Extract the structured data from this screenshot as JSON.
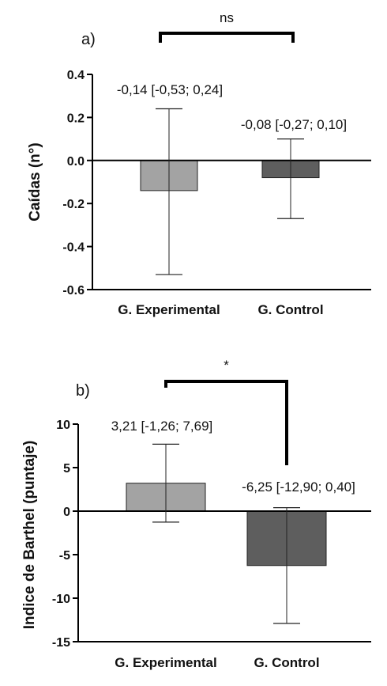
{
  "chart_data": [
    {
      "type": "bar",
      "panel_label": "a)",
      "ylabel": "Caídas (n°)",
      "categories": [
        "G. Experimental",
        "G. Control"
      ],
      "values": [
        -0.14,
        -0.08
      ],
      "ci_low": [
        -0.53,
        -0.27
      ],
      "ci_high": [
        0.24,
        0.1
      ],
      "annotations": [
        "-0,14 [-0,53; 0,24]",
        "-0,08 [-0,27; 0,10]"
      ],
      "bar_colors": [
        "#a3a3a3",
        "#5e5e5e"
      ],
      "ylim": [
        -0.6,
        0.4
      ],
      "yticks": [
        0.4,
        0.2,
        0.0,
        -0.2,
        -0.4,
        -0.6
      ],
      "ytick_labels": [
        "0.4",
        "0.2",
        "0.0",
        "-0.2",
        "-0.4",
        "-0.6"
      ],
      "significance": "ns",
      "grid": false
    },
    {
      "type": "bar",
      "panel_label": "b)",
      "ylabel": "Indice de Barthel (puntaje)",
      "categories": [
        "G. Experimental",
        "G. Control"
      ],
      "values": [
        3.21,
        -6.25
      ],
      "ci_low": [
        -1.26,
        -12.9
      ],
      "ci_high": [
        7.69,
        0.4
      ],
      "annotations": [
        "3,21 [-1,26; 7,69]",
        "-6,25 [-12,90; 0,40]"
      ],
      "bar_colors": [
        "#a3a3a3",
        "#5e5e5e"
      ],
      "ylim": [
        -15,
        10
      ],
      "yticks": [
        10,
        5,
        0,
        -5,
        -10,
        -15
      ],
      "ytick_labels": [
        "10",
        "5",
        "0",
        "-5",
        "-10",
        "-15"
      ],
      "significance": "*",
      "grid": false
    }
  ]
}
